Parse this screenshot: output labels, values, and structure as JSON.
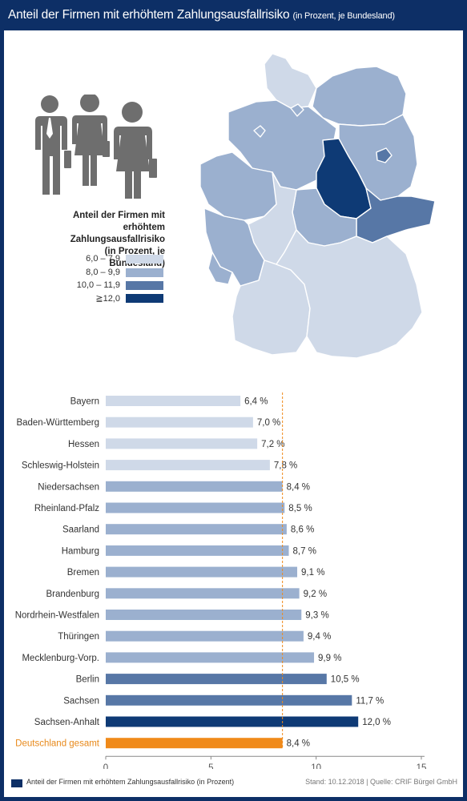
{
  "header": {
    "title": "Anteil der Firmen mit erhöhtem Zahlungsausfallrisiko",
    "subtitle": "(in Prozent, je Bundesland)"
  },
  "icons": {
    "people": "business-people-icon"
  },
  "legend": {
    "title_lines": [
      "Anteil der Firmen mit",
      "erhöhtem Zahlungsausfallrisiko",
      "(in Prozent, je Bundesland)"
    ],
    "items": [
      {
        "label": "6,0 – 7,9",
        "color": "#cfd9e8"
      },
      {
        "label": "8,0 – 9,9",
        "color": "#9bb0cf"
      },
      {
        "label": "10,0 – 11,9",
        "color": "#5777a6"
      },
      {
        "label": "≧12,0",
        "color": "#0e3a75"
      }
    ]
  },
  "chart_data": {
    "type": "bar",
    "orientation": "horizontal",
    "categories": [
      "Bayern",
      "Baden-Württemberg",
      "Hessen",
      "Schleswig-Holstein",
      "Niedersachsen",
      "Rheinland-Pfalz",
      "Saarland",
      "Hamburg",
      "Bremen",
      "Brandenburg",
      "Nordrhein-Westfalen",
      "Thüringen",
      "Mecklenburg-Vorp.",
      "Berlin",
      "Sachsen",
      "Sachsen-Anhalt",
      "Deutschland gesamt"
    ],
    "values": [
      6.4,
      7.0,
      7.2,
      7.8,
      8.4,
      8.5,
      8.6,
      8.7,
      9.1,
      9.2,
      9.3,
      9.4,
      9.9,
      10.5,
      11.7,
      12.0,
      8.4
    ],
    "value_labels": [
      "6,4 %",
      "7,0 %",
      "7,2 %",
      "7,8 %",
      "8,4 %",
      "8,5 %",
      "8,6 %",
      "8,7 %",
      "9,1 %",
      "9,2 %",
      "9,3 %",
      "9,4 %",
      "9,9 %",
      "10,5 %",
      "11,7 %",
      "12,0 %",
      "8,4 %"
    ],
    "colors": [
      "#cfd9e8",
      "#cfd9e8",
      "#cfd9e8",
      "#cfd9e8",
      "#9bb0cf",
      "#9bb0cf",
      "#9bb0cf",
      "#9bb0cf",
      "#9bb0cf",
      "#9bb0cf",
      "#9bb0cf",
      "#9bb0cf",
      "#9bb0cf",
      "#5777a6",
      "#5777a6",
      "#0e3a75",
      "#f08a1a"
    ],
    "highlight_label_color": "#e8891a",
    "reference_line": 8.4,
    "reference_color": "#f08a1a",
    "xlim": [
      0,
      15
    ],
    "xticks": [
      0,
      5,
      10,
      15
    ]
  },
  "map": {
    "regions": [
      {
        "name": "Schleswig-Holstein",
        "color": "#cfd9e8"
      },
      {
        "name": "Mecklenburg-Vorpommern",
        "color": "#9bb0cf"
      },
      {
        "name": "Niedersachsen",
        "color": "#9bb0cf"
      },
      {
        "name": "Bremen",
        "color": "#9bb0cf"
      },
      {
        "name": "Hamburg",
        "color": "#9bb0cf"
      },
      {
        "name": "Nordrhein-Westfalen",
        "color": "#9bb0cf"
      },
      {
        "name": "Brandenburg",
        "color": "#9bb0cf"
      },
      {
        "name": "Berlin",
        "color": "#5777a6"
      },
      {
        "name": "Sachsen-Anhalt",
        "color": "#0e3a75"
      },
      {
        "name": "Sachsen",
        "color": "#5777a6"
      },
      {
        "name": "Thüringen",
        "color": "#9bb0cf"
      },
      {
        "name": "Hessen",
        "color": "#cfd9e8"
      },
      {
        "name": "Rheinland-Pfalz",
        "color": "#9bb0cf"
      },
      {
        "name": "Saarland",
        "color": "#9bb0cf"
      },
      {
        "name": "Baden-Württemberg",
        "color": "#cfd9e8"
      },
      {
        "name": "Bayern",
        "color": "#cfd9e8"
      }
    ]
  },
  "footer": {
    "legend_label": "Anteil der Firmen mit erhöhtem Zahlungsausfallrisiko (in Prozent)",
    "source": "Stand: 10.12.2018 | Quelle: CRIF Bürgel GmbH"
  }
}
